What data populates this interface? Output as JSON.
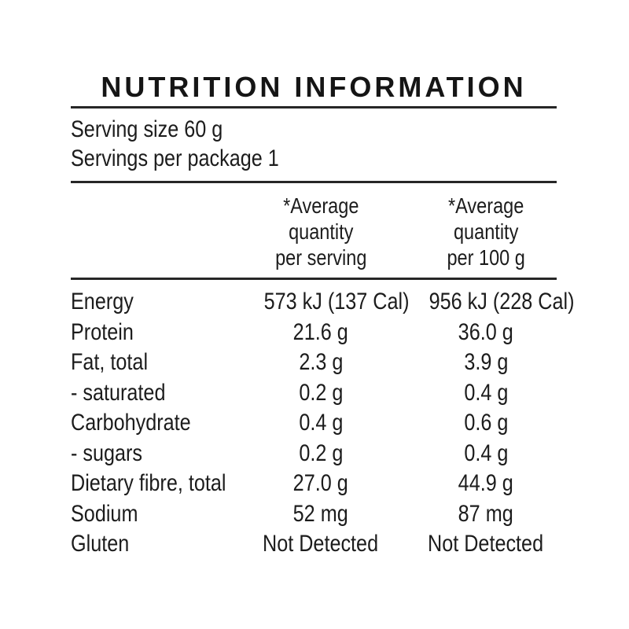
{
  "title": "NUTRITION INFORMATION",
  "serving_info": {
    "serving_size": "Serving size 60 g",
    "servings_per_package": "Servings per package 1"
  },
  "columns": {
    "per_serving": {
      "line1": "*Average",
      "line2": "quantity",
      "line3": "per serving"
    },
    "per_100g": {
      "line1": "*Average",
      "line2": "quantity",
      "line3": "per 100 g"
    }
  },
  "rows": [
    {
      "nutrient": "Energy",
      "per_serving": "573 kJ (137 Cal)",
      "per_100g": "956 kJ (228 Cal)"
    },
    {
      "nutrient": "Protein",
      "per_serving": "21.6 g",
      "per_100g": "36.0 g"
    },
    {
      "nutrient": "Fat, total",
      "per_serving": "2.3 g",
      "per_100g": "3.9 g"
    },
    {
      "nutrient": "- saturated",
      "per_serving": "0.2 g",
      "per_100g": "0.4 g"
    },
    {
      "nutrient": "Carbohydrate",
      "per_serving": "0.4 g",
      "per_100g": "0.6 g"
    },
    {
      "nutrient": "- sugars",
      "per_serving": "0.2 g",
      "per_100g": "0.4 g"
    },
    {
      "nutrient": "Dietary fibre, total",
      "per_serving": "27.0 g",
      "per_100g": "44.9 g"
    },
    {
      "nutrient": "Sodium",
      "per_serving": "52 mg",
      "per_100g": "87 mg"
    },
    {
      "nutrient": "Gluten",
      "per_serving": "Not Detected",
      "per_100g": "Not Detected"
    }
  ],
  "colors": {
    "text": "#1c1c1c",
    "rule": "#262626",
    "background": "#ffffff"
  }
}
